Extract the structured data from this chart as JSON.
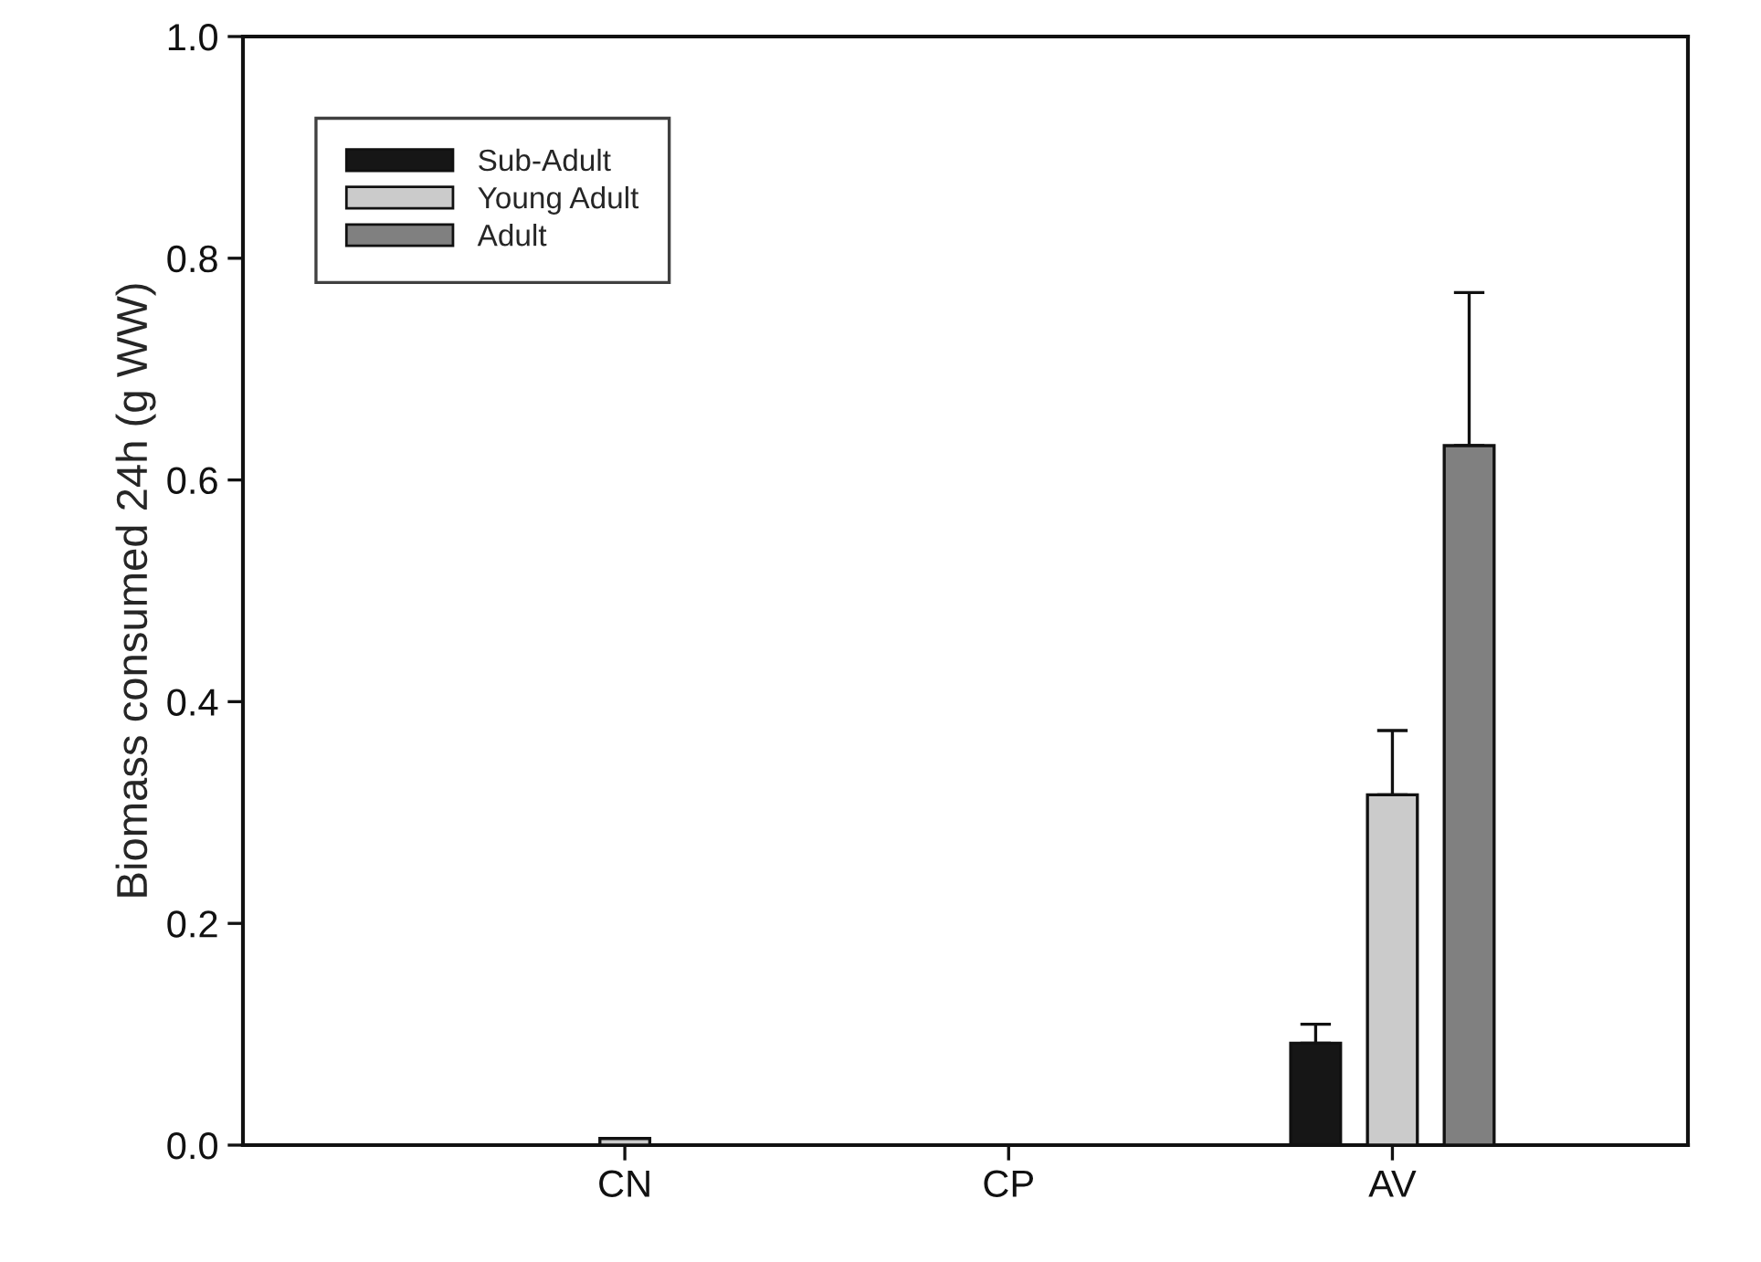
{
  "chart_data": {
    "type": "bar",
    "ylabel": "Biomass consumed 24h (g WW)",
    "categories": [
      "CN",
      "CP",
      "AV"
    ],
    "series": [
      {
        "name": "Sub-Adult",
        "color": "#161616",
        "values": [
          null,
          null,
          0.092
        ],
        "errors": [
          null,
          null,
          0.017
        ]
      },
      {
        "name": "Young Adult",
        "color": "#cbcbcb",
        "values": [
          0.006,
          null,
          0.316
        ],
        "errors": [
          null,
          null,
          0.058
        ]
      },
      {
        "name": "Adult",
        "color": "#808080",
        "values": [
          null,
          null,
          0.631
        ],
        "errors": [
          null,
          null,
          0.138
        ]
      }
    ],
    "ylim": [
      0,
      1.0
    ],
    "yticks": [
      {
        "value": 0,
        "label": "0.0"
      },
      {
        "value": 0.2,
        "label": "0.2"
      },
      {
        "value": 0.4,
        "label": "0.4"
      },
      {
        "value": 0.6,
        "label": "0.6"
      },
      {
        "value": 0.8,
        "label": "0.8"
      },
      {
        "value": 1.0,
        "label": "1.0"
      }
    ],
    "grid": false,
    "legend": "top left"
  }
}
